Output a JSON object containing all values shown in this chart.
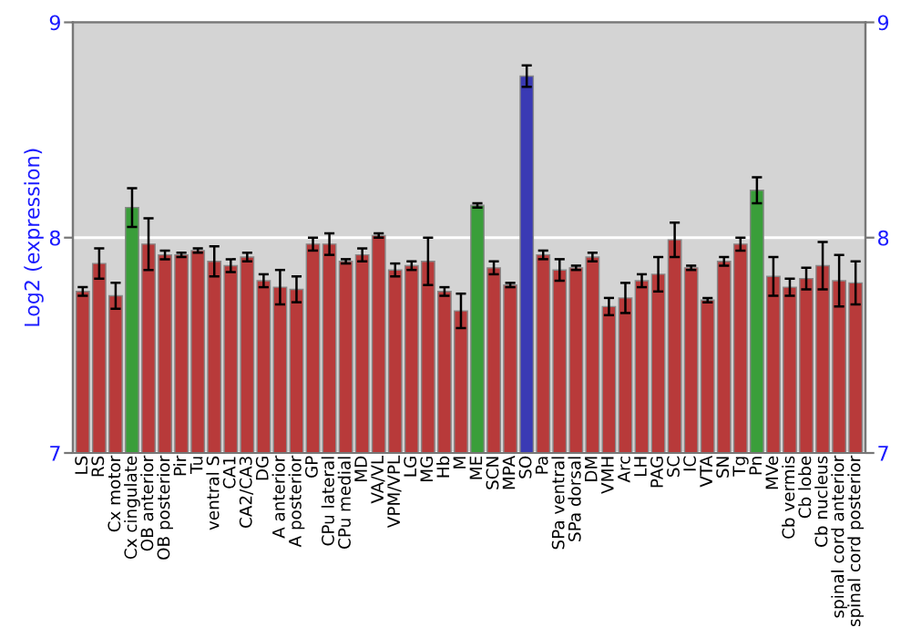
{
  "chart_data": {
    "type": "bar",
    "ylabel": "Log2 (expression)",
    "categories": [
      "LS",
      "RS",
      "Cx motor",
      "Cx cingulate",
      "OB anterior",
      "OB posterior",
      "Pir",
      "Tu",
      "ventral S",
      "CA1",
      "CA2/CA3",
      "DG",
      "A anterior",
      "A posterior",
      "GP",
      "CPu lateral",
      "CPu medial",
      "MD",
      "VA/VL",
      "VPM/VPL",
      "LG",
      "MG",
      "Hb",
      "M",
      "ME",
      "SCN",
      "MPA",
      "SO",
      "Pa",
      "SPa ventral",
      "SPa dorsal",
      "DM",
      "VMH",
      "Arc",
      "LH",
      "PAG",
      "SC",
      "IC",
      "VTA",
      "SN",
      "Tg",
      "Pn",
      "MVe",
      "Cb vermis",
      "Cb lobe",
      "Cb nucleus",
      "spinal cord anterior",
      "spinal cord posterior"
    ],
    "values": [
      7.75,
      7.88,
      7.73,
      8.14,
      7.97,
      7.92,
      7.92,
      7.94,
      7.89,
      7.87,
      7.91,
      7.8,
      7.77,
      7.76,
      7.97,
      7.97,
      7.89,
      7.92,
      8.01,
      7.85,
      7.87,
      7.89,
      7.75,
      7.66,
      8.15,
      7.86,
      7.78,
      8.75,
      7.92,
      7.85,
      7.86,
      7.91,
      7.68,
      7.72,
      7.8,
      7.83,
      7.99,
      7.86,
      7.71,
      7.89,
      7.97,
      8.22,
      7.82,
      7.77,
      7.81,
      7.87,
      7.8,
      7.79
    ],
    "errors": [
      0.02,
      0.07,
      0.06,
      0.09,
      0.12,
      0.02,
      0.01,
      0.01,
      0.07,
      0.03,
      0.02,
      0.03,
      0.08,
      0.06,
      0.03,
      0.05,
      0.01,
      0.03,
      0.01,
      0.03,
      0.02,
      0.11,
      0.02,
      0.08,
      0.01,
      0.03,
      0.01,
      0.05,
      0.02,
      0.05,
      0.01,
      0.02,
      0.04,
      0.07,
      0.03,
      0.08,
      0.08,
      0.01,
      0.01,
      0.02,
      0.03,
      0.06,
      0.09,
      0.04,
      0.05,
      0.11,
      0.12,
      0.1
    ],
    "colors": [
      "#b83a3a",
      "#b83a3a",
      "#b83a3a",
      "#3a9e3a",
      "#b83a3a",
      "#b83a3a",
      "#b83a3a",
      "#b83a3a",
      "#b83a3a",
      "#b83a3a",
      "#b83a3a",
      "#b83a3a",
      "#b83a3a",
      "#b83a3a",
      "#b83a3a",
      "#b83a3a",
      "#b83a3a",
      "#b83a3a",
      "#b83a3a",
      "#b83a3a",
      "#b83a3a",
      "#b83a3a",
      "#b83a3a",
      "#b83a3a",
      "#3a9e3a",
      "#b83a3a",
      "#b83a3a",
      "#3a3ab4",
      "#b83a3a",
      "#b83a3a",
      "#b83a3a",
      "#b83a3a",
      "#b83a3a",
      "#b83a3a",
      "#b83a3a",
      "#b83a3a",
      "#b83a3a",
      "#b83a3a",
      "#b83a3a",
      "#b83a3a",
      "#b83a3a",
      "#3a9e3a",
      "#b83a3a",
      "#b83a3a",
      "#b83a3a",
      "#b83a3a",
      "#b83a3a",
      "#b83a3a"
    ],
    "ylim": [
      7,
      9
    ],
    "yticks": [
      7,
      8,
      9
    ],
    "y2lim": [
      7,
      9
    ],
    "y2ticks": [
      7,
      8,
      9
    ],
    "grid": "y"
  }
}
